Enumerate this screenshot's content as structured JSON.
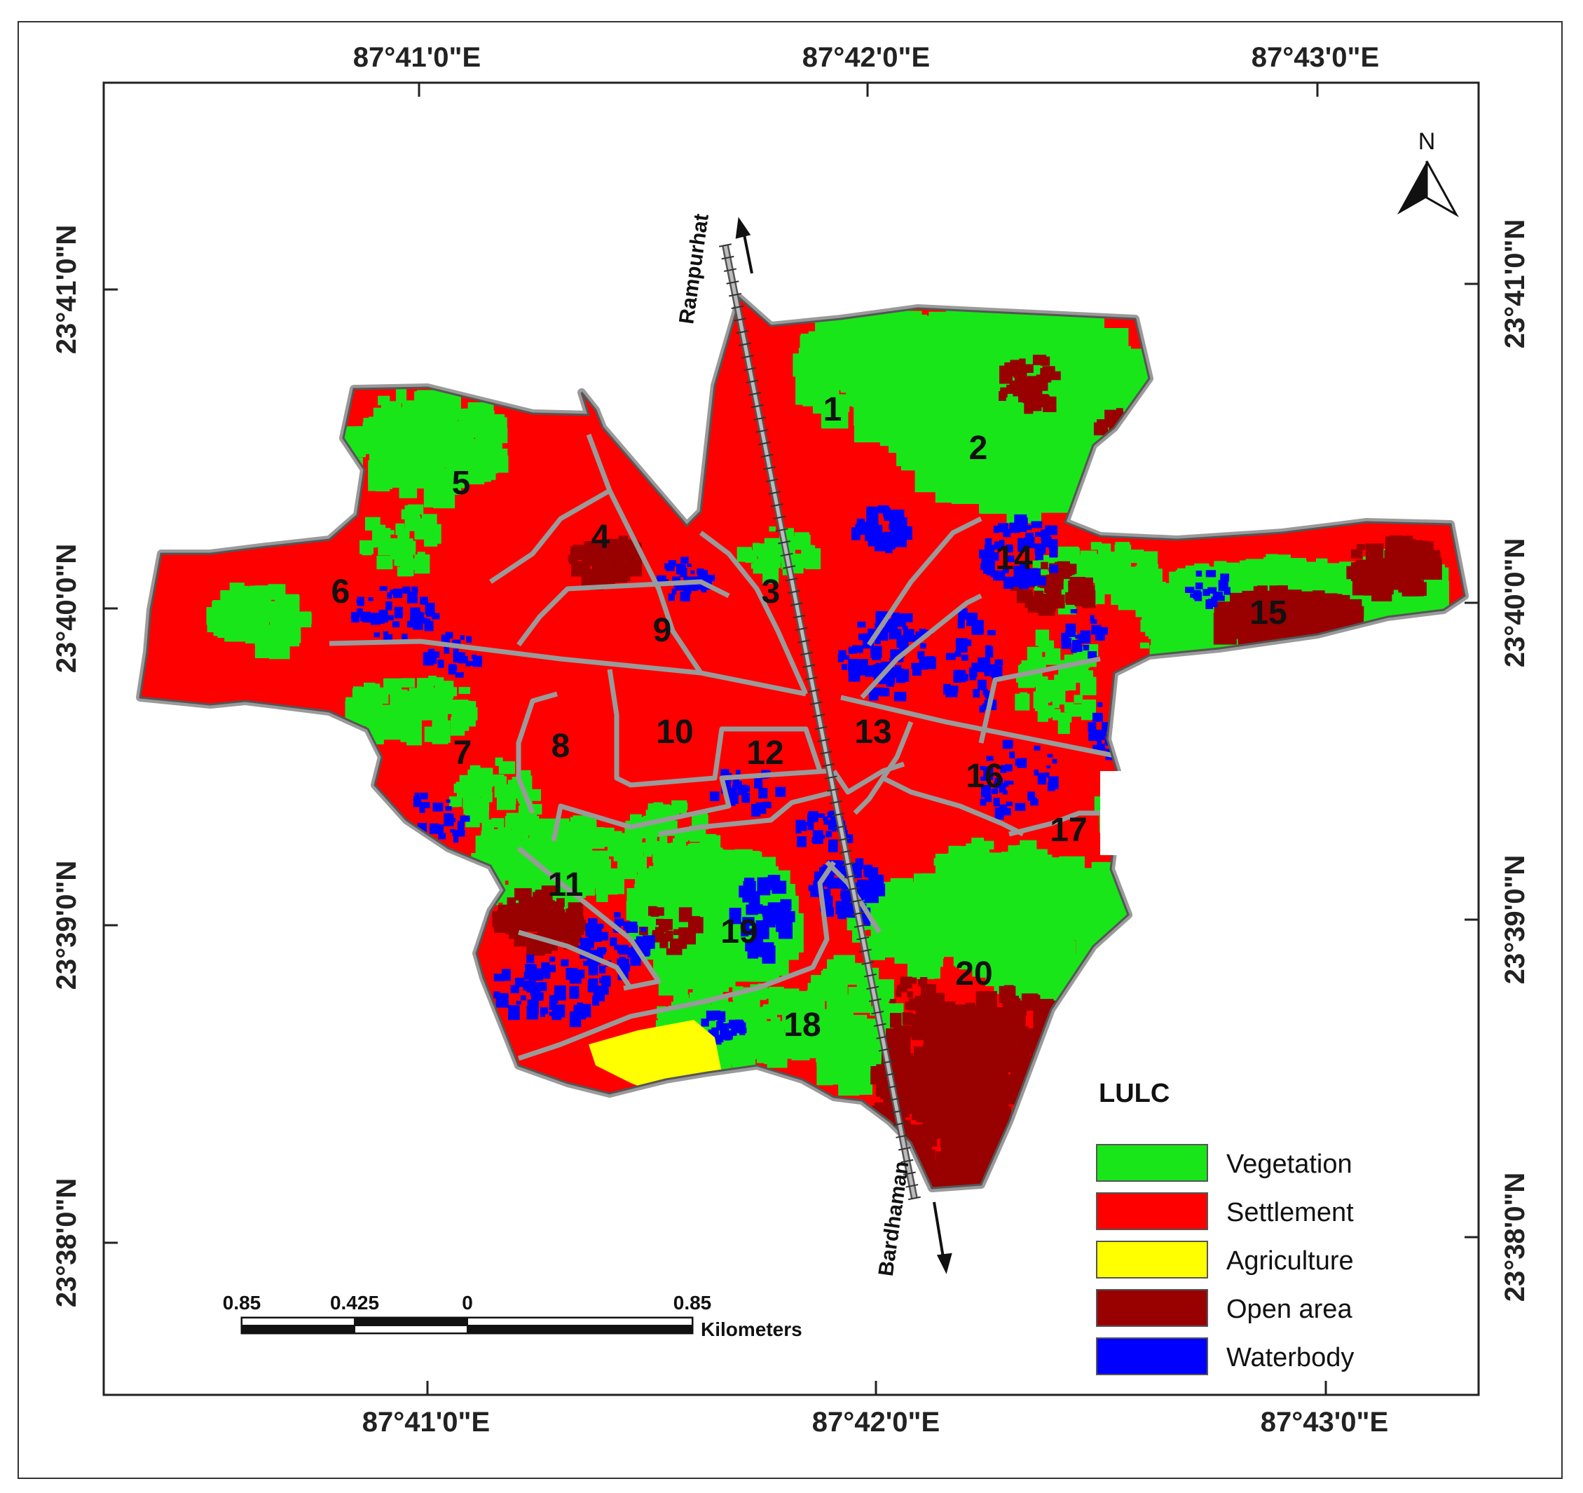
{
  "graticule": {
    "top_lon": [
      "87°41'0\"E",
      "87°42'0\"E",
      "87°43'0\"E"
    ],
    "bottom_lon": [
      "87°41'0\"E",
      "87°42'0\"E",
      "87°43'0\"E"
    ],
    "left_lat": [
      "23°41'0\"N",
      "23°40'0\"N",
      "23°39'0\"N",
      "23°38'0\"N"
    ],
    "right_lat": [
      "23°41'0\"N",
      "23°40'0\"N",
      "23°39'0\"N",
      "23°38'0\"N"
    ]
  },
  "north_arrow": {
    "label": "N"
  },
  "railway": {
    "north_label": "Rampurhat",
    "south_label": "Bardhaman"
  },
  "wards": [
    "1",
    "2",
    "3",
    "4",
    "5",
    "6",
    "7",
    "8",
    "9",
    "10",
    "11",
    "12",
    "13",
    "14",
    "15",
    "16",
    "17",
    "18",
    "19",
    "20"
  ],
  "legend": {
    "title": "LULC",
    "items": [
      {
        "label": "Vegetation",
        "color": "#19e619"
      },
      {
        "label": "Settlement",
        "color": "#ff0000"
      },
      {
        "label": "Agriculture",
        "color": "#ffff00"
      },
      {
        "label": "Open area",
        "color": "#990000"
      },
      {
        "label": "Waterbody",
        "color": "#0000ff"
      }
    ]
  },
  "scale_bar": {
    "ticks": [
      "0.85",
      "0.425",
      "0",
      "0.85"
    ],
    "unit": "Kilometers"
  }
}
